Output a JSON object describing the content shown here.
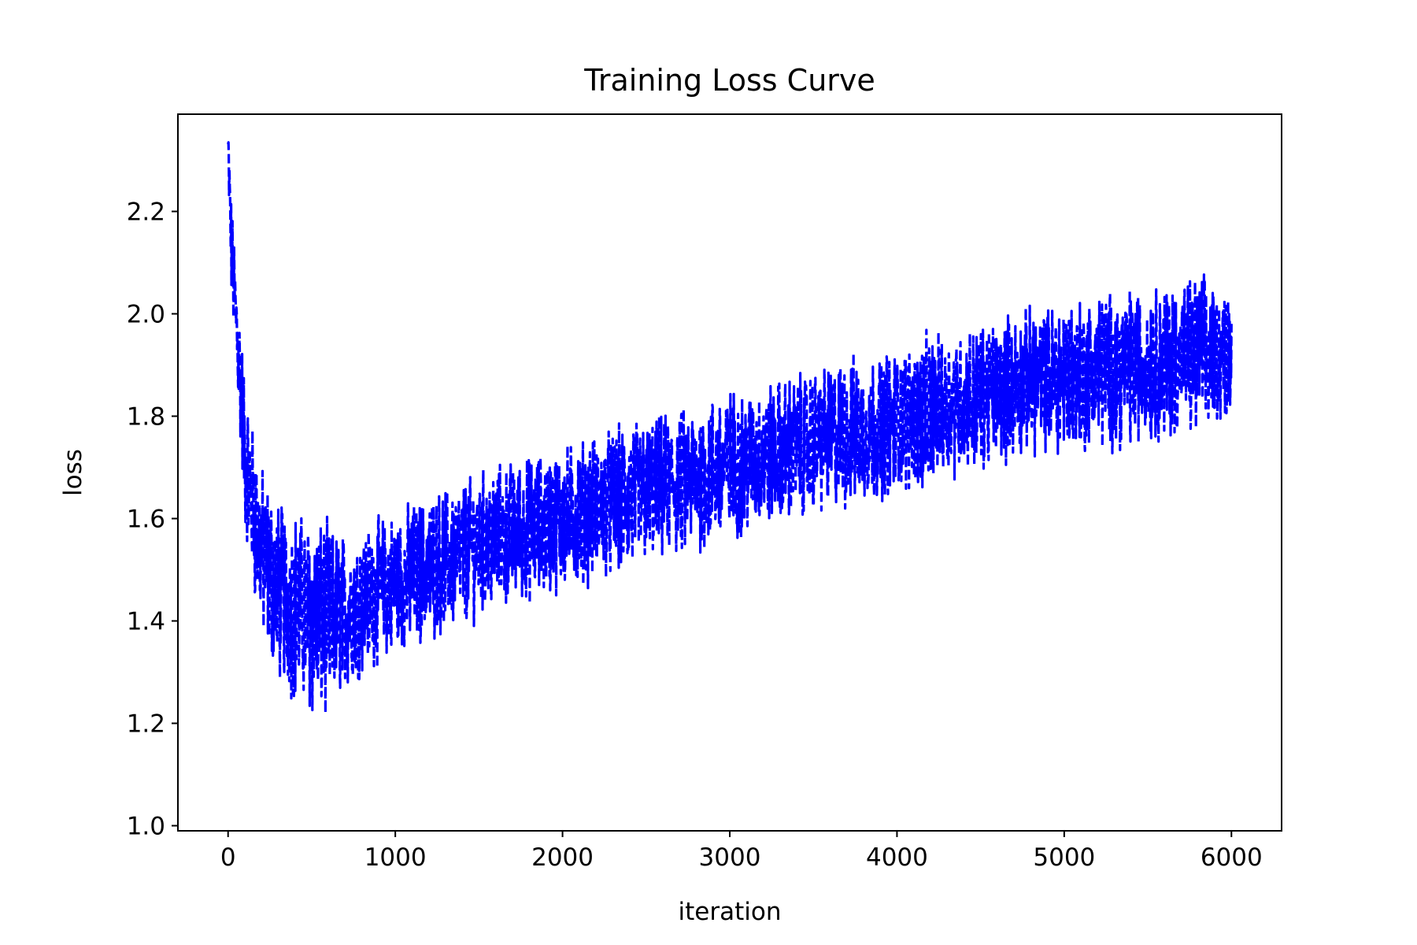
{
  "chart_data": {
    "type": "line",
    "title": "Training Loss Curve",
    "xlabel": "iteration",
    "ylabel": "loss",
    "xlim": [
      -300,
      6300
    ],
    "ylim": [
      0.99,
      2.39
    ],
    "xticks": [
      0,
      1000,
      2000,
      3000,
      4000,
      5000,
      6000
    ],
    "xtick_labels": [
      "0",
      "1000",
      "2000",
      "3000",
      "4000",
      "5000",
      "6000"
    ],
    "yticks": [
      1.0,
      1.2,
      1.4,
      1.6,
      1.8,
      2.0,
      2.2
    ],
    "ytick_labels": [
      "1.0",
      "1.2",
      "1.4",
      "1.6",
      "1.8",
      "2.0",
      "2.2"
    ],
    "grid": false,
    "line_style": "dashed",
    "series": [
      {
        "color": "#0000ff",
        "x": [
          0,
          20,
          50,
          80,
          100,
          130,
          160,
          200,
          250,
          300,
          350,
          400,
          450,
          500,
          550,
          600,
          650,
          700,
          800,
          900,
          1000,
          1100,
          1200,
          1300,
          1400,
          1500,
          1600,
          1700,
          1800,
          1900,
          2000,
          2100,
          2200,
          2300,
          2400,
          2500,
          2600,
          2700,
          2800,
          2900,
          3000,
          3100,
          3200,
          3300,
          3400,
          3500,
          3600,
          3700,
          3800,
          3900,
          4000,
          4100,
          4200,
          4300,
          4400,
          4500,
          4600,
          4700,
          4800,
          4900,
          5000,
          5100,
          5200,
          5300,
          5400,
          5500,
          5600,
          5700,
          5800,
          5900,
          6000
        ],
        "y": [
          2.32,
          2.12,
          1.98,
          1.84,
          1.72,
          1.66,
          1.6,
          1.54,
          1.49,
          1.46,
          1.44,
          1.43,
          1.42,
          1.41,
          1.4,
          1.4,
          1.41,
          1.42,
          1.44,
          1.46,
          1.47,
          1.49,
          1.5,
          1.52,
          1.53,
          1.55,
          1.56,
          1.57,
          1.58,
          1.59,
          1.6,
          1.61,
          1.62,
          1.63,
          1.64,
          1.65,
          1.66,
          1.67,
          1.68,
          1.69,
          1.7,
          1.71,
          1.72,
          1.73,
          1.74,
          1.75,
          1.76,
          1.77,
          1.77,
          1.78,
          1.79,
          1.8,
          1.81,
          1.82,
          1.83,
          1.84,
          1.85,
          1.86,
          1.87,
          1.87,
          1.88,
          1.88,
          1.89,
          1.89,
          1.9,
          1.9,
          1.91,
          1.91,
          1.92,
          1.92,
          1.93
        ]
      }
    ],
    "noise_amplitude": [
      0.06,
      0.08,
      0.1,
      0.12,
      0.12,
      0.13,
      0.14,
      0.14,
      0.15,
      0.15,
      0.15,
      0.16,
      0.16,
      0.17,
      0.17,
      0.16,
      0.14,
      0.13,
      0.12,
      0.12,
      0.12,
      0.12,
      0.12,
      0.12,
      0.12,
      0.12,
      0.12,
      0.12,
      0.12,
      0.12,
      0.12,
      0.12,
      0.12,
      0.12,
      0.13,
      0.12,
      0.12,
      0.12,
      0.12,
      0.13,
      0.13,
      0.12,
      0.12,
      0.12,
      0.12,
      0.12,
      0.12,
      0.13,
      0.12,
      0.12,
      0.12,
      0.12,
      0.13,
      0.12,
      0.12,
      0.12,
      0.12,
      0.12,
      0.12,
      0.12,
      0.14,
      0.13,
      0.13,
      0.13,
      0.13,
      0.13,
      0.13,
      0.13,
      0.13,
      0.12,
      0.1
    ]
  }
}
